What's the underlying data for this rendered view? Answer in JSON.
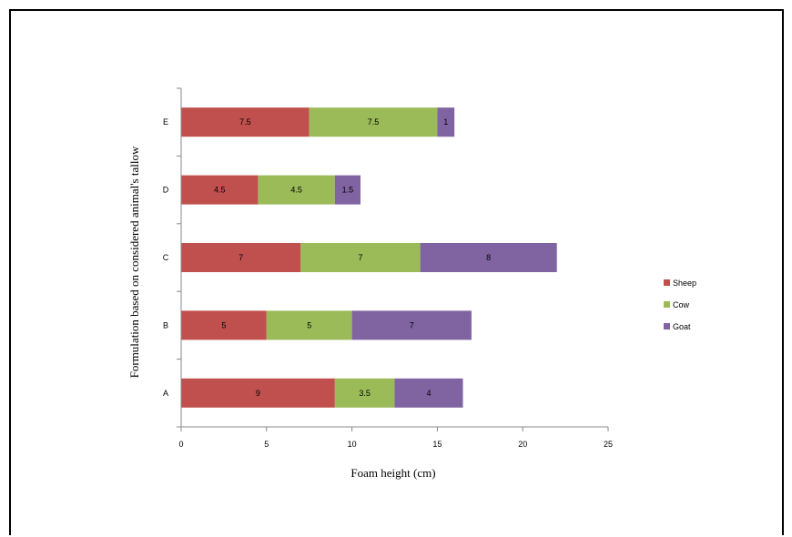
{
  "chart_data": {
    "type": "bar",
    "orientation": "horizontal",
    "stacked": true,
    "title": "",
    "xlabel": "Foam height (cm)",
    "ylabel": "Formulation based on considered animal's tallow",
    "categories": [
      "A",
      "B",
      "C",
      "D",
      "E"
    ],
    "series": [
      {
        "name": "Sheep",
        "color": "#c0504d",
        "values": [
          9,
          5,
          7,
          4.5,
          7.5
        ],
        "labels": [
          "9",
          "5",
          "7",
          "4.5",
          "7.5"
        ]
      },
      {
        "name": "Cow",
        "color": "#9bbb59",
        "values": [
          3.5,
          5,
          7,
          4.5,
          7.5
        ],
        "labels": [
          "3.5",
          "5",
          "7",
          "4.5",
          "7.5"
        ]
      },
      {
        "name": "Goat",
        "color": "#8064a2",
        "values": [
          4,
          7,
          8,
          1.5,
          1
        ],
        "labels": [
          "4",
          "7",
          "8",
          "1.5",
          "1"
        ]
      }
    ],
    "xlim": [
      0,
      25
    ],
    "xticks": [
      "0",
      "5",
      "10",
      "15",
      "20",
      "25"
    ],
    "grid": false,
    "legend_position": "right"
  }
}
